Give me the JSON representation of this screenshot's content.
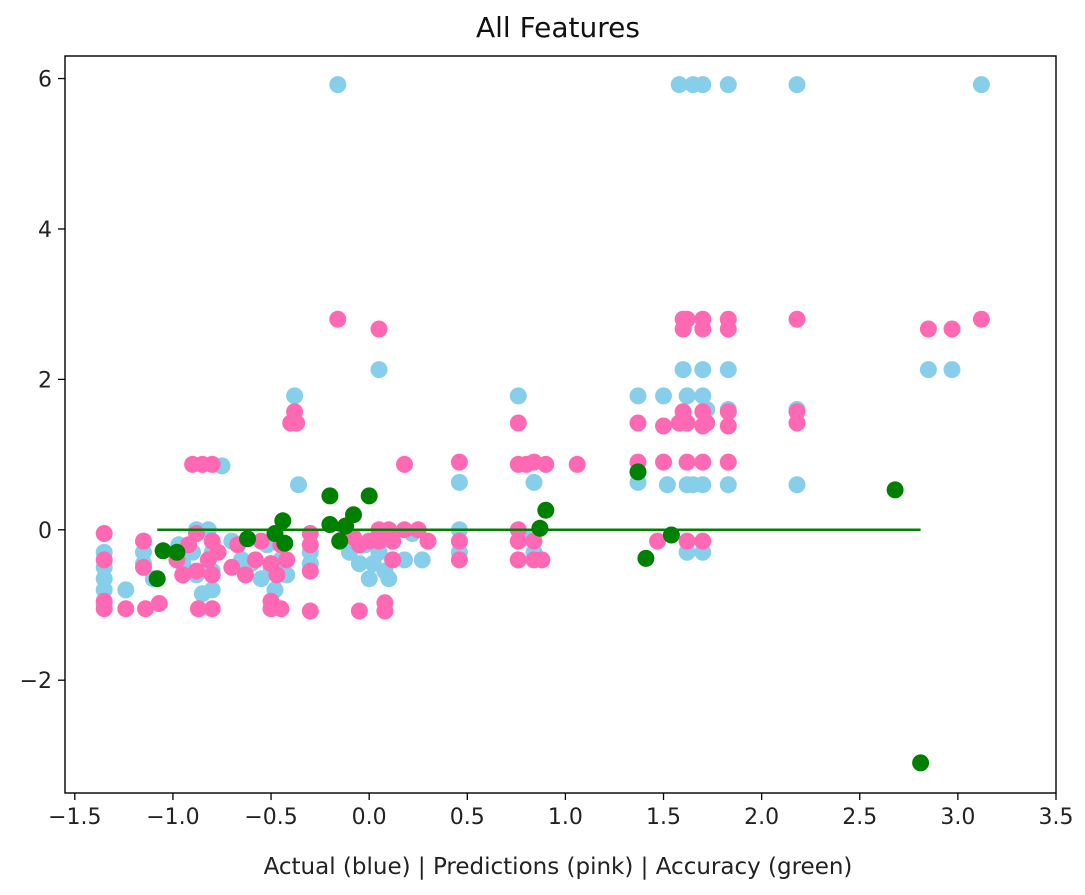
{
  "chart_data": {
    "type": "scatter",
    "title": "All Features",
    "xlabel": "Actual (blue) | Predictions (pink) | Accuracy (green)",
    "ylabel": "",
    "xlim": [
      -1.55,
      3.5
    ],
    "ylim": [
      -3.5,
      6.3
    ],
    "xticks": [
      -1.5,
      -1.0,
      -0.5,
      0.0,
      0.5,
      1.0,
      1.5,
      2.0,
      2.5,
      3.0,
      3.5
    ],
    "xtick_labels": [
      "−1.5",
      "−1.0",
      "−0.5",
      "0.0",
      "0.5",
      "1.0",
      "1.5",
      "2.0",
      "2.5",
      "3.0",
      "3.5"
    ],
    "yticks": [
      -2,
      0,
      2,
      4,
      6
    ],
    "ytick_labels": [
      "−2",
      "0",
      "2",
      "4",
      "6"
    ],
    "grid": false,
    "colors": {
      "actual": "#87ceeb",
      "predictions": "#ff69b4",
      "accuracy": "#008000",
      "line": "#008000"
    },
    "series": [
      {
        "key": "actual",
        "points": [
          [
            -1.35,
            -0.3
          ],
          [
            -1.35,
            -0.5
          ],
          [
            -1.35,
            -0.65
          ],
          [
            -1.35,
            -0.8
          ],
          [
            -1.35,
            -1.0
          ],
          [
            -1.24,
            -0.8
          ],
          [
            -1.15,
            -0.3
          ],
          [
            -1.15,
            -0.45
          ],
          [
            -1.1,
            -0.65
          ],
          [
            -0.97,
            -0.2
          ],
          [
            -0.95,
            -0.45
          ],
          [
            -0.9,
            -0.3
          ],
          [
            -0.88,
            0.0
          ],
          [
            -0.88,
            -0.6
          ],
          [
            -0.85,
            -0.85
          ],
          [
            -0.82,
            0.0
          ],
          [
            -0.8,
            -0.3
          ],
          [
            -0.8,
            -0.55
          ],
          [
            -0.8,
            -0.8
          ],
          [
            -0.75,
            0.85
          ],
          [
            -0.7,
            -0.15
          ],
          [
            -0.65,
            -0.4
          ],
          [
            -0.6,
            -0.45
          ],
          [
            -0.55,
            -0.65
          ],
          [
            -0.52,
            -0.2
          ],
          [
            -0.5,
            -0.5
          ],
          [
            -0.48,
            -0.8
          ],
          [
            -0.45,
            -0.4
          ],
          [
            -0.42,
            -0.6
          ],
          [
            -0.38,
            1.78
          ],
          [
            -0.36,
            0.6
          ],
          [
            -0.3,
            -0.3
          ],
          [
            -0.3,
            -0.45
          ],
          [
            -0.16,
            5.92
          ],
          [
            -0.12,
            -0.1
          ],
          [
            -0.1,
            -0.3
          ],
          [
            -0.05,
            -0.45
          ],
          [
            -0.02,
            -0.2
          ],
          [
            0.0,
            -0.65
          ],
          [
            0.02,
            -0.45
          ],
          [
            0.05,
            2.13
          ],
          [
            0.05,
            -0.3
          ],
          [
            0.08,
            -0.55
          ],
          [
            0.1,
            -0.65
          ],
          [
            0.12,
            -0.4
          ],
          [
            0.18,
            -0.4
          ],
          [
            0.22,
            -0.05
          ],
          [
            0.27,
            -0.4
          ],
          [
            0.46,
            0.0
          ],
          [
            0.46,
            0.63
          ],
          [
            0.46,
            -0.3
          ],
          [
            0.76,
            1.78
          ],
          [
            0.76,
            -0.4
          ],
          [
            0.8,
            -0.1
          ],
          [
            0.84,
            0.63
          ],
          [
            0.84,
            -0.3
          ],
          [
            1.37,
            0.63
          ],
          [
            1.37,
            1.78
          ],
          [
            1.5,
            1.78
          ],
          [
            1.52,
            0.6
          ],
          [
            1.58,
            5.92
          ],
          [
            1.6,
            2.13
          ],
          [
            1.62,
            1.78
          ],
          [
            1.62,
            0.6
          ],
          [
            1.62,
            -0.3
          ],
          [
            1.65,
            5.92
          ],
          [
            1.65,
            0.6
          ],
          [
            1.7,
            5.92
          ],
          [
            1.7,
            2.13
          ],
          [
            1.7,
            1.78
          ],
          [
            1.7,
            0.6
          ],
          [
            1.7,
            -0.3
          ],
          [
            1.72,
            1.6
          ],
          [
            1.83,
            5.92
          ],
          [
            1.83,
            2.13
          ],
          [
            1.83,
            1.6
          ],
          [
            1.83,
            0.6
          ],
          [
            2.18,
            5.92
          ],
          [
            2.18,
            1.6
          ],
          [
            2.18,
            0.6
          ],
          [
            2.85,
            2.13
          ],
          [
            2.97,
            2.13
          ],
          [
            3.12,
            5.92
          ]
        ]
      },
      {
        "key": "predictions",
        "points": [
          [
            -1.35,
            -0.05
          ],
          [
            -1.35,
            -0.4
          ],
          [
            -1.35,
            -0.95
          ],
          [
            -1.35,
            -1.05
          ],
          [
            -1.24,
            -1.05
          ],
          [
            -1.15,
            -0.15
          ],
          [
            -1.15,
            -0.5
          ],
          [
            -1.14,
            -1.05
          ],
          [
            -1.07,
            -0.98
          ],
          [
            -0.98,
            -0.4
          ],
          [
            -0.95,
            -0.6
          ],
          [
            -0.92,
            -0.2
          ],
          [
            -0.9,
            0.87
          ],
          [
            -0.88,
            -0.05
          ],
          [
            -0.88,
            -0.55
          ],
          [
            -0.87,
            -1.05
          ],
          [
            -0.85,
            0.87
          ],
          [
            -0.82,
            -0.4
          ],
          [
            -0.8,
            0.87
          ],
          [
            -0.8,
            -0.15
          ],
          [
            -0.8,
            -0.6
          ],
          [
            -0.8,
            -1.05
          ],
          [
            -0.77,
            -0.3
          ],
          [
            -0.7,
            -0.5
          ],
          [
            -0.67,
            -0.2
          ],
          [
            -0.63,
            -0.6
          ],
          [
            -0.58,
            -0.4
          ],
          [
            -0.55,
            -0.15
          ],
          [
            -0.5,
            -0.45
          ],
          [
            -0.5,
            -0.95
          ],
          [
            -0.5,
            -1.05
          ],
          [
            -0.47,
            -0.6
          ],
          [
            -0.45,
            -1.05
          ],
          [
            -0.45,
            -0.2
          ],
          [
            -0.42,
            -0.4
          ],
          [
            -0.4,
            1.42
          ],
          [
            -0.38,
            1.57
          ],
          [
            -0.37,
            1.42
          ],
          [
            -0.3,
            -0.05
          ],
          [
            -0.3,
            -0.2
          ],
          [
            -0.3,
            -0.55
          ],
          [
            -0.3,
            -1.08
          ],
          [
            -0.16,
            2.8
          ],
          [
            -0.12,
            0.0
          ],
          [
            -0.08,
            -0.1
          ],
          [
            -0.05,
            -0.2
          ],
          [
            -0.05,
            -1.08
          ],
          [
            0.0,
            -0.15
          ],
          [
            0.05,
            2.67
          ],
          [
            0.05,
            0.0
          ],
          [
            0.05,
            -0.15
          ],
          [
            0.08,
            -0.97
          ],
          [
            0.08,
            -1.08
          ],
          [
            0.1,
            0.0
          ],
          [
            0.12,
            -0.15
          ],
          [
            0.12,
            -0.4
          ],
          [
            0.18,
            0.87
          ],
          [
            0.18,
            0.0
          ],
          [
            0.25,
            0.0
          ],
          [
            0.3,
            -0.15
          ],
          [
            0.46,
            0.9
          ],
          [
            0.46,
            -0.15
          ],
          [
            0.46,
            -0.4
          ],
          [
            0.76,
            1.42
          ],
          [
            0.76,
            0.87
          ],
          [
            0.76,
            0.0
          ],
          [
            0.76,
            -0.15
          ],
          [
            0.76,
            -0.4
          ],
          [
            0.8,
            0.87
          ],
          [
            0.84,
            0.9
          ],
          [
            0.84,
            -0.15
          ],
          [
            0.84,
            -0.4
          ],
          [
            0.88,
            -0.4
          ],
          [
            0.9,
            0.87
          ],
          [
            1.06,
            0.87
          ],
          [
            1.37,
            1.42
          ],
          [
            1.37,
            0.9
          ],
          [
            1.47,
            -0.15
          ],
          [
            1.5,
            1.38
          ],
          [
            1.5,
            0.9
          ],
          [
            1.58,
            1.42
          ],
          [
            1.6,
            2.8
          ],
          [
            1.6,
            2.67
          ],
          [
            1.6,
            1.57
          ],
          [
            1.62,
            2.8
          ],
          [
            1.62,
            1.42
          ],
          [
            1.62,
            0.9
          ],
          [
            1.62,
            -0.15
          ],
          [
            1.7,
            2.8
          ],
          [
            1.7,
            2.67
          ],
          [
            1.7,
            1.57
          ],
          [
            1.7,
            1.38
          ],
          [
            1.7,
            0.9
          ],
          [
            1.7,
            -0.15
          ],
          [
            1.72,
            1.42
          ],
          [
            1.83,
            2.8
          ],
          [
            1.83,
            2.67
          ],
          [
            1.83,
            1.57
          ],
          [
            1.83,
            1.38
          ],
          [
            1.83,
            0.9
          ],
          [
            2.18,
            2.8
          ],
          [
            2.18,
            1.57
          ],
          [
            2.18,
            1.42
          ],
          [
            2.85,
            2.67
          ],
          [
            2.97,
            2.67
          ],
          [
            3.12,
            2.8
          ]
        ]
      },
      {
        "key": "accuracy",
        "points": [
          [
            -1.08,
            -0.65
          ],
          [
            -1.05,
            -0.28
          ],
          [
            -0.98,
            -0.3
          ],
          [
            -0.62,
            -0.12
          ],
          [
            -0.48,
            -0.05
          ],
          [
            -0.44,
            0.12
          ],
          [
            -0.43,
            -0.18
          ],
          [
            -0.2,
            0.45
          ],
          [
            -0.2,
            0.07
          ],
          [
            -0.15,
            -0.15
          ],
          [
            -0.12,
            0.05
          ],
          [
            -0.08,
            0.2
          ],
          [
            0.0,
            0.45
          ],
          [
            0.87,
            0.02
          ],
          [
            0.9,
            0.26
          ],
          [
            1.37,
            0.77
          ],
          [
            1.41,
            -0.38
          ],
          [
            1.54,
            -0.07
          ],
          [
            2.68,
            0.53
          ],
          [
            2.81,
            -3.1
          ]
        ]
      }
    ],
    "line": {
      "x": [
        -1.08,
        2.81
      ],
      "y": [
        0.0,
        0.0
      ]
    }
  }
}
